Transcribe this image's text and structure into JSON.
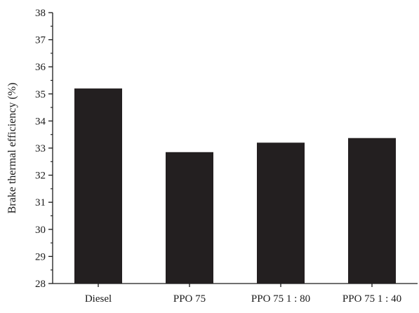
{
  "chart_data": {
    "type": "bar",
    "categories": [
      "Diesel",
      "PPO 75",
      "PPO 75 1 : 80",
      "PPO 75 1 : 40"
    ],
    "values": [
      35.2,
      32.85,
      33.2,
      33.37
    ],
    "title": "",
    "xlabel": "",
    "ylabel": "Brake thermal efficiency (%)",
    "ylim": [
      28,
      38
    ],
    "yticks": [
      28,
      29,
      30,
      31,
      32,
      33,
      34,
      35,
      36,
      37,
      38
    ],
    "grid": false,
    "legend": "none",
    "bar_color": "#231f20"
  }
}
